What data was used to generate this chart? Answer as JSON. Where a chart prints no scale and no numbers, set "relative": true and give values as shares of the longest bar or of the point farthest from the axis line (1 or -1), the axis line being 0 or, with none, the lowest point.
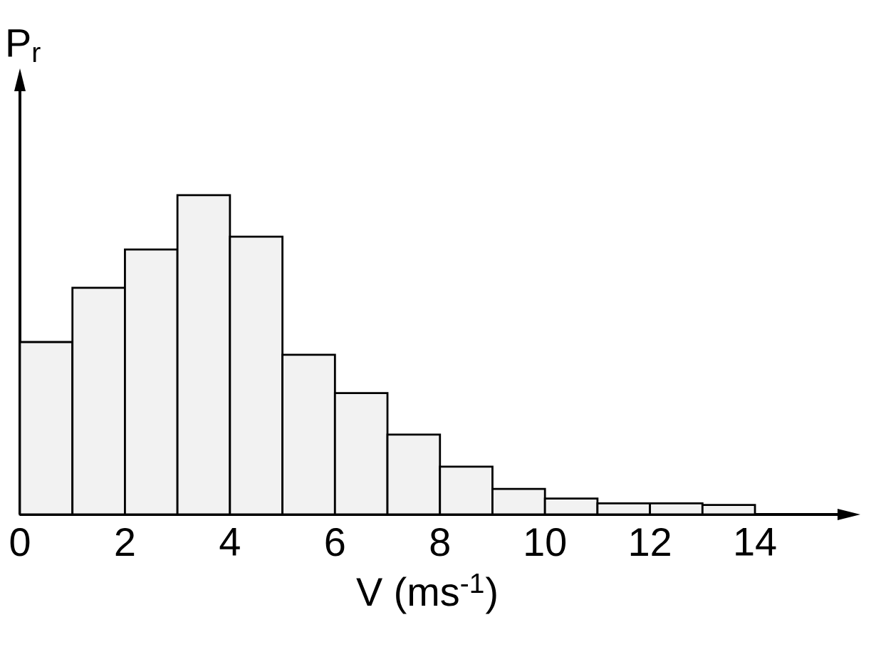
{
  "chart_data": {
    "type": "bar",
    "relative": true,
    "x": [
      0.5,
      1.5,
      2.5,
      3.5,
      4.5,
      5.5,
      6.5,
      7.5,
      8.5,
      9.5,
      10.5,
      11.5,
      12.5,
      13.5
    ],
    "values": [
      0.54,
      0.71,
      0.83,
      1,
      0.87,
      0.5,
      0.38,
      0.25,
      0.15,
      0.08,
      0.05,
      0.035,
      0.035,
      0.03
    ],
    "xlim": [
      0,
      15.6
    ],
    "xticks": [
      0,
      2,
      4,
      6,
      8,
      10,
      12,
      14
    ],
    "xlabel": "V (ms$^{-1}$)",
    "ylabel": "P$_{r}$",
    "color": "#f2f2f2"
  }
}
